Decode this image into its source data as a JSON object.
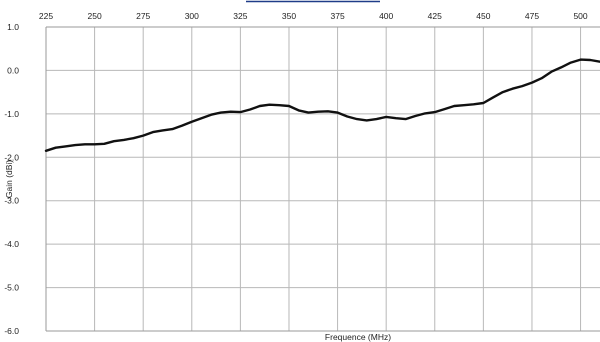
{
  "chart_data": {
    "type": "line",
    "xlabel": "Frequence (MHz)",
    "ylabel": "Gain (dBi)",
    "xlim": [
      225,
      510
    ],
    "ylim": [
      -6.0,
      1.0
    ],
    "x_ticks": [
      225,
      250,
      275,
      300,
      325,
      350,
      375,
      400,
      425,
      450,
      475,
      500
    ],
    "x_tick_labels": [
      "225",
      "250",
      "275",
      "300",
      "325",
      "350",
      "375",
      "400",
      "425",
      "450",
      "475",
      "500"
    ],
    "y_ticks": [
      1.0,
      0.0,
      -1.0,
      -2.0,
      -3.0,
      -4.0,
      -5.0,
      -6.0
    ],
    "y_tick_labels": [
      "1.0",
      "0.0",
      "-1.0",
      "-2.0",
      "-3.0",
      "-4.0",
      "-5.0",
      "-6.0"
    ],
    "x_axis_position": "top",
    "xlabel_position": "bottom",
    "grid": true,
    "line_color": "#111111",
    "series": [
      {
        "x": [
          225,
          230,
          235,
          240,
          245,
          250,
          255,
          260,
          265,
          270,
          275,
          280,
          285,
          290,
          295,
          300,
          305,
          310,
          315,
          320,
          325,
          330,
          335,
          340,
          345,
          350,
          355,
          360,
          365,
          370,
          375,
          380,
          385,
          390,
          395,
          400,
          405,
          410,
          415,
          420,
          425,
          430,
          435,
          440,
          445,
          450,
          455,
          460,
          465,
          470,
          475,
          480,
          485,
          490,
          495,
          500,
          505,
          510
        ],
        "y": [
          -1.85,
          -1.78,
          -1.75,
          -1.72,
          -1.7,
          -1.7,
          -1.69,
          -1.63,
          -1.6,
          -1.56,
          -1.5,
          -1.42,
          -1.38,
          -1.35,
          -1.27,
          -1.18,
          -1.1,
          -1.02,
          -0.97,
          -0.95,
          -0.96,
          -0.9,
          -0.82,
          -0.79,
          -0.8,
          -0.82,
          -0.92,
          -0.97,
          -0.95,
          -0.94,
          -0.97,
          -1.06,
          -1.12,
          -1.15,
          -1.12,
          -1.07,
          -1.1,
          -1.12,
          -1.05,
          -0.99,
          -0.96,
          -0.89,
          -0.82,
          -0.8,
          -0.78,
          -0.75,
          -0.62,
          -0.5,
          -0.42,
          -0.36,
          -0.28,
          -0.18,
          -0.03,
          0.07,
          0.18,
          0.25,
          0.24,
          0.2
        ]
      }
    ]
  }
}
